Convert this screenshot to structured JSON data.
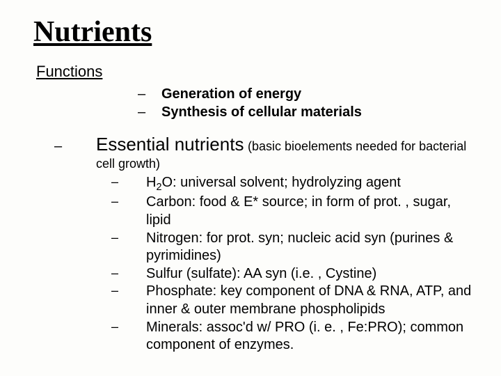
{
  "title": "Nutrients",
  "subtitle": "Functions",
  "functions": [
    "Generation of energy",
    "Synthesis of cellular materials"
  ],
  "essential": {
    "heading": "Essential nutrients",
    "note_inline": "(basic bioelements needed for bacterial",
    "note_cont": "cell growth)",
    "items": [
      {
        "html": "H<span class=\"sub\">2</span>O: universal solvent; hydrolyzing agent"
      },
      {
        "text": "Carbon: food & E* source; in form of prot. , sugar, lipid"
      },
      {
        "text": "Nitrogen: for prot. syn; nucleic acid syn (purines & pyrimidines)"
      },
      {
        "text": "Sulfur (sulfate): AA syn (i.e. , Cystine)"
      },
      {
        "text": "Phosphate: key component of DNA & RNA, ATP, and inner & outer membrane phospholipids"
      },
      {
        "text": "Minerals: assoc'd w/ PRO (i. e. , Fe:PRO); common component of enzymes."
      }
    ]
  },
  "colors": {
    "background": "#fdfdfb",
    "text": "#000000"
  },
  "fonts": {
    "title_family": "Times New Roman",
    "body_family": "Arial",
    "title_size_pt": 32,
    "subtitle_size_pt": 17,
    "body_size_pt": 15,
    "essential_title_pt": 20
  }
}
